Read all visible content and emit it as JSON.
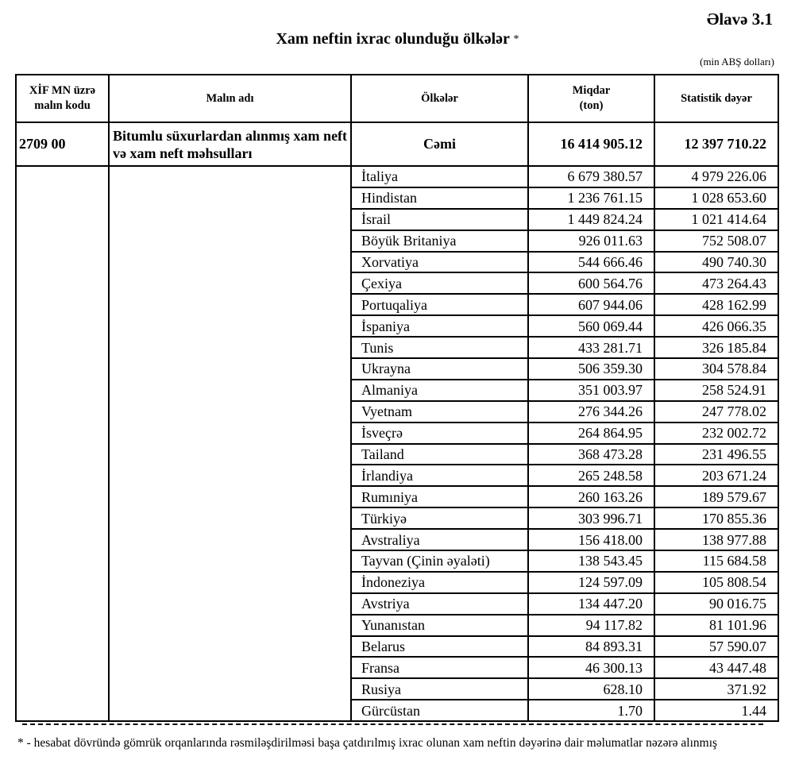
{
  "annex": "Əlavə 3.1",
  "title": "Xam neftin ixrac olunduğu ölkələr",
  "title_mark": "*",
  "unit": "(min ABŞ dolları)",
  "headers": {
    "code": "XİF MN üzrə malın kodu",
    "product": "Malın adı",
    "countries": "Ölkələr",
    "quantity": "Miqdar (ton)",
    "value": "Statistik dəyər"
  },
  "total": {
    "code": "2709 00",
    "product": "Bitumlu süxurlardan alınmış xam neft və xam neft məhsulları",
    "label": "Cəmi",
    "quantity": "16 414 905.12",
    "value": "12 397 710.22"
  },
  "rows": [
    {
      "country": "İtaliya",
      "quantity": "6 679 380.57",
      "value": "4 979 226.06"
    },
    {
      "country": "Hindistan",
      "quantity": "1 236 761.15",
      "value": "1 028 653.60"
    },
    {
      "country": "İsrail",
      "quantity": "1 449 824.24",
      "value": "1 021 414.64"
    },
    {
      "country": "Böyük Britaniya",
      "quantity": "926 011.63",
      "value": "752 508.07"
    },
    {
      "country": "Xorvatiya",
      "quantity": "544 666.46",
      "value": "490 740.30"
    },
    {
      "country": "Çexiya",
      "quantity": "600 564.76",
      "value": "473 264.43"
    },
    {
      "country": "Portuqaliya",
      "quantity": "607 944.06",
      "value": "428 162.99"
    },
    {
      "country": "İspaniya",
      "quantity": "560 069.44",
      "value": "426 066.35"
    },
    {
      "country": "Tunis",
      "quantity": "433 281.71",
      "value": "326 185.84"
    },
    {
      "country": "Ukrayna",
      "quantity": "506 359.30",
      "value": "304 578.84"
    },
    {
      "country": "Almaniya",
      "quantity": "351 003.97",
      "value": "258 524.91"
    },
    {
      "country": "Vyetnam",
      "quantity": "276 344.26",
      "value": "247 778.02"
    },
    {
      "country": "İsveçrə",
      "quantity": "264 864.95",
      "value": "232 002.72"
    },
    {
      "country": "Tailand",
      "quantity": "368 473.28",
      "value": "231 496.55"
    },
    {
      "country": "İrlandiya",
      "quantity": "265 248.58",
      "value": "203 671.24"
    },
    {
      "country": "Rumıniya",
      "quantity": "260 163.26",
      "value": "189 579.67"
    },
    {
      "country": "Türkiyə",
      "quantity": "303 996.71",
      "value": "170 855.36"
    },
    {
      "country": "Avstraliya",
      "quantity": "156 418.00",
      "value": "138 977.88"
    },
    {
      "country": "Tayvan (Çinin əyaləti)",
      "quantity": "138 543.45",
      "value": "115 684.58"
    },
    {
      "country": "İndoneziya",
      "quantity": "124 597.09",
      "value": "105 808.54"
    },
    {
      "country": "Avstriya",
      "quantity": "134 447.20",
      "value": "90 016.75"
    },
    {
      "country": "Yunanıstan",
      "quantity": "94 117.82",
      "value": "81 101.96"
    },
    {
      "country": "Belarus",
      "quantity": "84 893.31",
      "value": "57 590.07"
    },
    {
      "country": "Fransa",
      "quantity": "46 300.13",
      "value": "43 447.48"
    },
    {
      "country": "Rusiya",
      "quantity": "628.10",
      "value": "371.92"
    },
    {
      "country": "Gürcüstan",
      "quantity": "1.70",
      "value": "1.44"
    }
  ],
  "footnote": "* - hesabat dövründə gömrük orqanlarında rəsmiləşdirilməsi başa çatdırılmış ixrac olunan xam  neftin dəyərinə dair məlumatlar nəzərə alınmış"
}
